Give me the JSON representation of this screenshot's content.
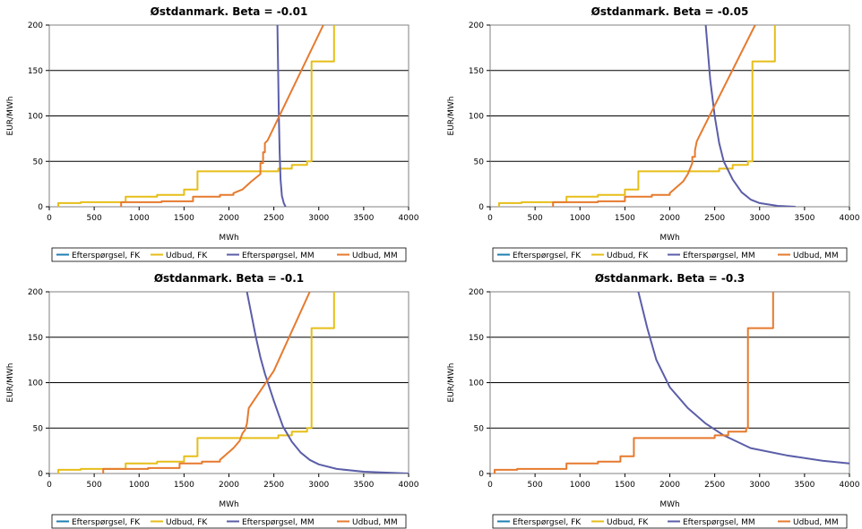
{
  "colors": {
    "efterspoergsel_fk": "#1f7fb2",
    "udbud_fk": "#e6be18",
    "efterspoergsel_mm": "#5b5ea8",
    "udbud_mm": "#e67a2e"
  },
  "legend": [
    "Efterspørgsel, FK",
    "Udbud, FK",
    "Efterspørgsel, MM",
    "Udbud, MM"
  ],
  "chart_data": [
    {
      "type": "line",
      "title": "Østdanmark. Beta = -0.01",
      "xlabel": "MWh",
      "ylabel": "EUR/MWh",
      "xlim": [
        0,
        4000
      ],
      "ylim": [
        0,
        200
      ],
      "xticks": [
        "0",
        "500",
        "1000",
        "1500",
        "2000",
        "2500",
        "3000",
        "3500",
        "4000"
      ],
      "yticks": [
        "0",
        "50",
        "100",
        "150",
        "200"
      ],
      "grid": "horizontal",
      "legend_position": "bottom",
      "series": [
        {
          "name": "Efterspørgsel, FK",
          "x": [],
          "y": []
        },
        {
          "name": "Udbud, FK",
          "x": [
            100,
            100,
            350,
            350,
            850,
            850,
            1200,
            1200,
            1500,
            1500,
            1650,
            1650,
            2550,
            2550,
            2700,
            2700,
            2870,
            2870,
            2920,
            2920,
            2920,
            3170,
            3170
          ],
          "y": [
            0,
            4,
            4,
            5,
            5,
            11,
            11,
            13,
            13,
            19,
            19,
            39,
            39,
            42,
            42,
            46,
            46,
            50,
            50,
            60,
            160,
            160,
            200
          ]
        },
        {
          "name": "Efterspørgsel, MM",
          "x": [
            2540,
            2548,
            2556,
            2565,
            2575,
            2590,
            2610,
            2630
          ],
          "y": [
            200,
            150,
            100,
            60,
            30,
            12,
            4,
            0
          ]
        },
        {
          "name": "Udbud, MM",
          "x": [
            800,
            800,
            1250,
            1250,
            1600,
            1600,
            1900,
            1900,
            2050,
            2050,
            2150,
            2250,
            2350,
            2350,
            2380,
            2380,
            2400,
            2400,
            2430,
            3050
          ],
          "y": [
            0,
            5,
            5,
            6,
            6,
            11,
            11,
            13,
            13,
            15,
            19,
            28,
            36,
            48,
            48,
            60,
            60,
            70,
            73,
            200
          ]
        }
      ]
    },
    {
      "type": "line",
      "title": "Østdanmark. Beta = -0.05",
      "xlabel": "MWh",
      "ylabel": "EUR/MWh",
      "xlim": [
        0,
        4000
      ],
      "ylim": [
        0,
        200
      ],
      "xticks": [
        "0",
        "500",
        "1000",
        "1500",
        "2000",
        "2500",
        "3000",
        "3500",
        "4000"
      ],
      "yticks": [
        "0",
        "50",
        "100",
        "150",
        "200"
      ],
      "grid": "horizontal",
      "legend_position": "bottom",
      "series": [
        {
          "name": "Efterspørgsel, FK",
          "x": [],
          "y": []
        },
        {
          "name": "Udbud, FK",
          "x": [
            100,
            100,
            350,
            350,
            850,
            850,
            1200,
            1200,
            1500,
            1500,
            1650,
            1650,
            2550,
            2550,
            2700,
            2700,
            2870,
            2870,
            2920,
            2920,
            2920,
            3170,
            3170
          ],
          "y": [
            0,
            4,
            4,
            5,
            5,
            11,
            11,
            13,
            13,
            19,
            19,
            39,
            39,
            42,
            42,
            46,
            46,
            50,
            50,
            60,
            160,
            160,
            200
          ]
        },
        {
          "name": "Efterspørgsel, MM",
          "x": [
            2400,
            2450,
            2500,
            2550,
            2600,
            2700,
            2800,
            2900,
            3000,
            3200,
            3400
          ],
          "y": [
            200,
            140,
            100,
            70,
            50,
            30,
            16,
            8,
            4,
            1,
            0
          ]
        },
        {
          "name": "Udbud, MM",
          "x": [
            700,
            700,
            1200,
            1200,
            1500,
            1500,
            1800,
            1800,
            2000,
            2000,
            2150,
            2200,
            2250,
            2250,
            2280,
            2280,
            2300,
            2330,
            2950
          ],
          "y": [
            0,
            5,
            5,
            6,
            6,
            11,
            11,
            13,
            13,
            15,
            28,
            36,
            48,
            55,
            55,
            62,
            72,
            78,
            200
          ]
        }
      ]
    },
    {
      "type": "line",
      "title": "Østdanmark. Beta = -0.1",
      "xlabel": "MWh",
      "ylabel": "EUR/MWh",
      "xlim": [
        0,
        4000
      ],
      "ylim": [
        0,
        200
      ],
      "xticks": [
        "0",
        "500",
        "1000",
        "1500",
        "2000",
        "2500",
        "3000",
        "3500",
        "4000"
      ],
      "yticks": [
        "0",
        "50",
        "100",
        "150",
        "200"
      ],
      "grid": "horizontal",
      "legend_position": "bottom",
      "series": [
        {
          "name": "Efterspørgsel, FK",
          "x": [],
          "y": []
        },
        {
          "name": "Udbud, FK",
          "x": [
            100,
            100,
            350,
            350,
            850,
            850,
            1200,
            1200,
            1500,
            1500,
            1650,
            1650,
            2550,
            2550,
            2700,
            2700,
            2870,
            2870,
            2920,
            2920,
            2920,
            3170,
            3170
          ],
          "y": [
            0,
            4,
            4,
            5,
            5,
            11,
            11,
            13,
            13,
            19,
            19,
            39,
            39,
            42,
            42,
            46,
            46,
            50,
            50,
            60,
            160,
            160,
            200
          ]
        },
        {
          "name": "Efterspørgsel, MM",
          "x": [
            2200,
            2250,
            2300,
            2350,
            2400,
            2450,
            2500,
            2550,
            2600,
            2700,
            2800,
            2900,
            3000,
            3200,
            3500,
            4000
          ],
          "y": [
            200,
            175,
            150,
            128,
            110,
            95,
            80,
            66,
            52,
            35,
            23,
            15,
            10,
            5,
            2,
            0
          ]
        },
        {
          "name": "Udbud, MM",
          "x": [
            600,
            600,
            1100,
            1100,
            1450,
            1450,
            1700,
            1700,
            1900,
            1900,
            2050,
            2120,
            2150,
            2180,
            2200,
            2220,
            2500,
            2900
          ],
          "y": [
            0,
            5,
            5,
            6,
            6,
            11,
            11,
            13,
            13,
            15,
            28,
            36,
            44,
            48,
            55,
            72,
            113,
            200
          ]
        }
      ]
    },
    {
      "type": "line",
      "title": "Østdanmark. Beta = -0.3",
      "xlabel": "MWh",
      "ylabel": "EUR/MWh",
      "xlim": [
        0,
        4000
      ],
      "ylim": [
        0,
        200
      ],
      "xticks": [
        "0",
        "500",
        "1000",
        "1500",
        "2000",
        "2500",
        "3000",
        "3500",
        "4000"
      ],
      "yticks": [
        "0",
        "50",
        "100",
        "150",
        "200"
      ],
      "grid": "horizontal",
      "legend_position": "bottom",
      "series": [
        {
          "name": "Efterspørgsel, FK",
          "x": [],
          "y": []
        },
        {
          "name": "Udbud, FK",
          "x": [],
          "y": []
        },
        {
          "name": "Efterspørgsel, MM",
          "x": [
            1650,
            1750,
            1850,
            2000,
            2200,
            2400,
            2600,
            2900,
            3300,
            3700,
            4000
          ],
          "y": [
            200,
            160,
            125,
            95,
            72,
            55,
            42,
            28,
            20,
            14,
            11
          ]
        },
        {
          "name": "Udbud, MM",
          "x": [
            50,
            50,
            300,
            300,
            850,
            850,
            1200,
            1200,
            1450,
            1450,
            1600,
            1600,
            2500,
            2500,
            2650,
            2650,
            2850,
            2850,
            2870,
            2870,
            2870,
            3150,
            3150
          ],
          "y": [
            0,
            4,
            4,
            5,
            5,
            11,
            11,
            13,
            13,
            19,
            19,
            39,
            39,
            42,
            42,
            46,
            46,
            50,
            50,
            60,
            160,
            160,
            200
          ]
        }
      ]
    }
  ]
}
